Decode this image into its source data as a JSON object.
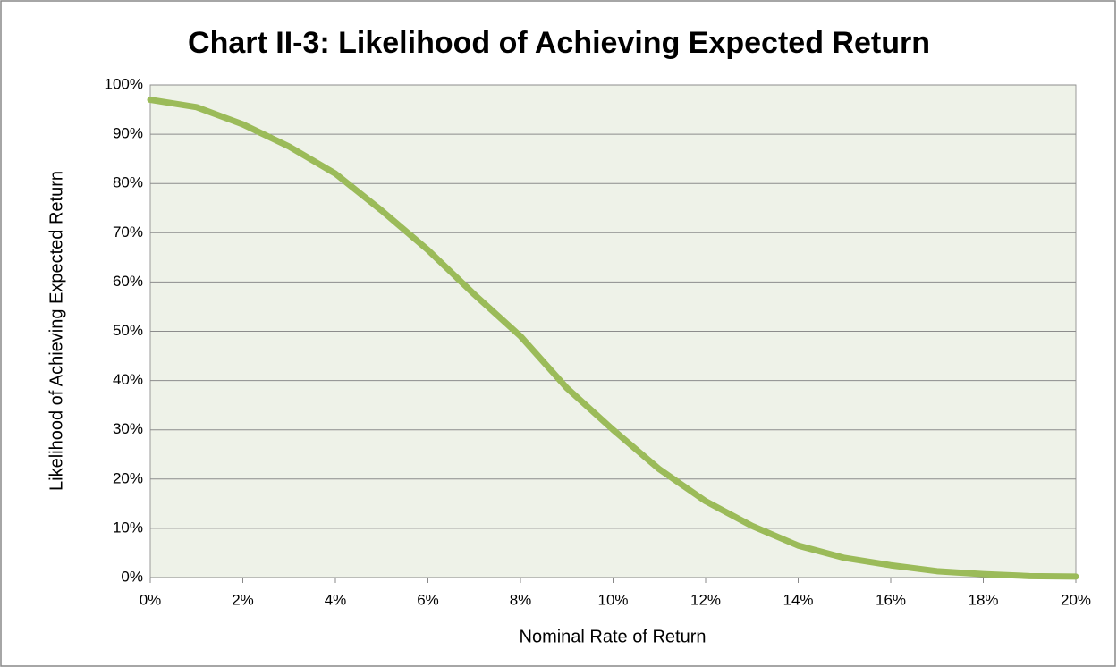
{
  "chart_data": {
    "type": "line",
    "title": "Chart II-3: Likelihood of Achieving Expected Return",
    "x_label": "Nominal Rate of Return",
    "y_label": "Likelihood of Achieving Expected Return",
    "x": [
      0,
      1,
      2,
      3,
      4,
      5,
      6,
      7,
      8,
      9,
      10,
      11,
      12,
      13,
      14,
      15,
      16,
      17,
      18,
      19,
      20
    ],
    "values": [
      97,
      95.5,
      92,
      87.5,
      82,
      74.5,
      66.5,
      57.5,
      49,
      38.5,
      30,
      22,
      15.5,
      10.5,
      6.5,
      4,
      2.5,
      1.3,
      0.7,
      0.3,
      0.2
    ],
    "color": "#9bbb59",
    "xlim": [
      0,
      20
    ],
    "xticks": [
      {
        "value": 0,
        "label": "0%"
      },
      {
        "value": 2,
        "label": "2%"
      },
      {
        "value": 4,
        "label": "4%"
      },
      {
        "value": 6,
        "label": "6%"
      },
      {
        "value": 8,
        "label": "8%"
      },
      {
        "value": 10,
        "label": "10%"
      },
      {
        "value": 12,
        "label": "12%"
      },
      {
        "value": 14,
        "label": "14%"
      },
      {
        "value": 16,
        "label": "16%"
      },
      {
        "value": 18,
        "label": "18%"
      },
      {
        "value": 20,
        "label": "20%"
      }
    ],
    "ylim": [
      0,
      100
    ],
    "yticks": [
      {
        "value": 0,
        "label": "0%"
      },
      {
        "value": 10,
        "label": "10%"
      },
      {
        "value": 20,
        "label": "20%"
      },
      {
        "value": 30,
        "label": "30%"
      },
      {
        "value": 40,
        "label": "40%"
      },
      {
        "value": 50,
        "label": "50%"
      },
      {
        "value": 60,
        "label": "60%"
      },
      {
        "value": 70,
        "label": "70%"
      },
      {
        "value": 80,
        "label": "80%"
      },
      {
        "value": 90,
        "label": "90%"
      },
      {
        "value": 100,
        "label": "100%"
      }
    ],
    "grid": true
  }
}
